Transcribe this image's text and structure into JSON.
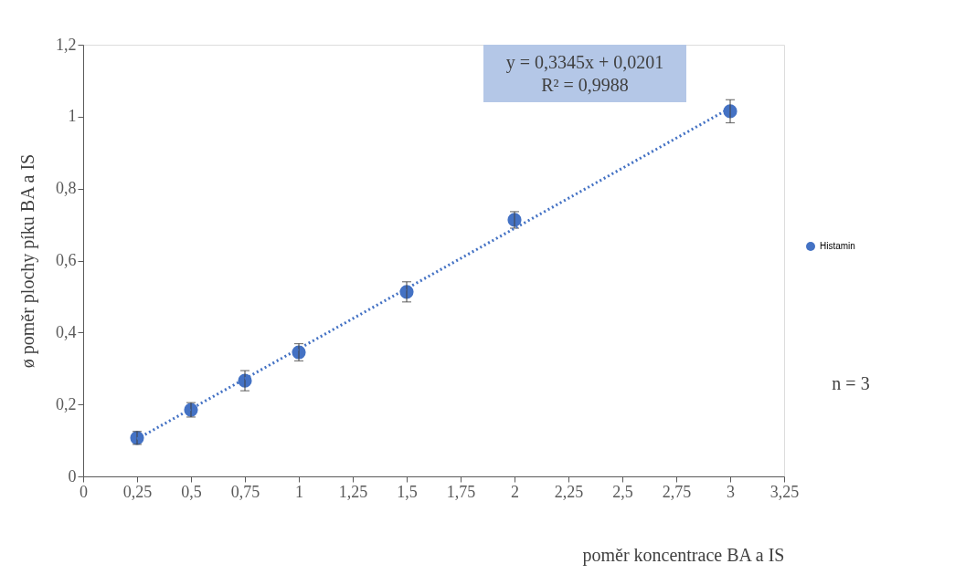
{
  "chart_data": {
    "type": "scatter",
    "xlabel": "poměr koncentrace BA a IS",
    "ylabel": "ø poměr plochy píku BA a IS",
    "x": [
      0.25,
      0.5,
      0.75,
      1,
      1.5,
      2,
      3
    ],
    "series": [
      {
        "name": "Histamin",
        "color": "#4472c4",
        "values": [
          0.107,
          0.185,
          0.266,
          0.345,
          0.513,
          0.713,
          1.015
        ],
        "errors": [
          0.018,
          0.02,
          0.028,
          0.024,
          0.028,
          0.023,
          0.032
        ],
        "marker": "circle"
      },
      {
        "type": "line",
        "color": "#4472c4",
        "x": [
          0.25,
          3
        ],
        "values": [
          0.104,
          1.024
        ],
        "line_style": "dotted"
      }
    ],
    "xlim": [
      0,
      3.25
    ],
    "ylim": [
      0,
      1.2
    ],
    "xticks": [
      0,
      {
        "value": 0.25,
        "label": "0,25"
      },
      {
        "value": 0.5,
        "label": "0,5"
      },
      {
        "value": 0.75,
        "label": "0,75"
      },
      1,
      {
        "value": 1.25,
        "label": "1,25"
      },
      {
        "value": 1.5,
        "label": "1,5"
      },
      {
        "value": 1.75,
        "label": "1,75"
      },
      2,
      {
        "value": 2.25,
        "label": "2,25"
      },
      {
        "value": 2.5,
        "label": "2,5"
      },
      {
        "value": 2.75,
        "label": "2,75"
      },
      3,
      {
        "value": 3.25,
        "label": "3,25"
      }
    ],
    "yticks": [
      0,
      {
        "value": 0.2,
        "label": "0,2"
      },
      {
        "value": 0.4,
        "label": "0,4"
      },
      {
        "value": 0.6,
        "label": "0,6"
      },
      {
        "value": 0.8,
        "label": "0,8"
      },
      1,
      {
        "value": 1.2,
        "label": "1,2"
      }
    ],
    "annotations": [
      "y = 0,3345x + 0,0201",
      "R² = 0,9988",
      "n = 3"
    ],
    "legend": "right",
    "grid": false
  }
}
